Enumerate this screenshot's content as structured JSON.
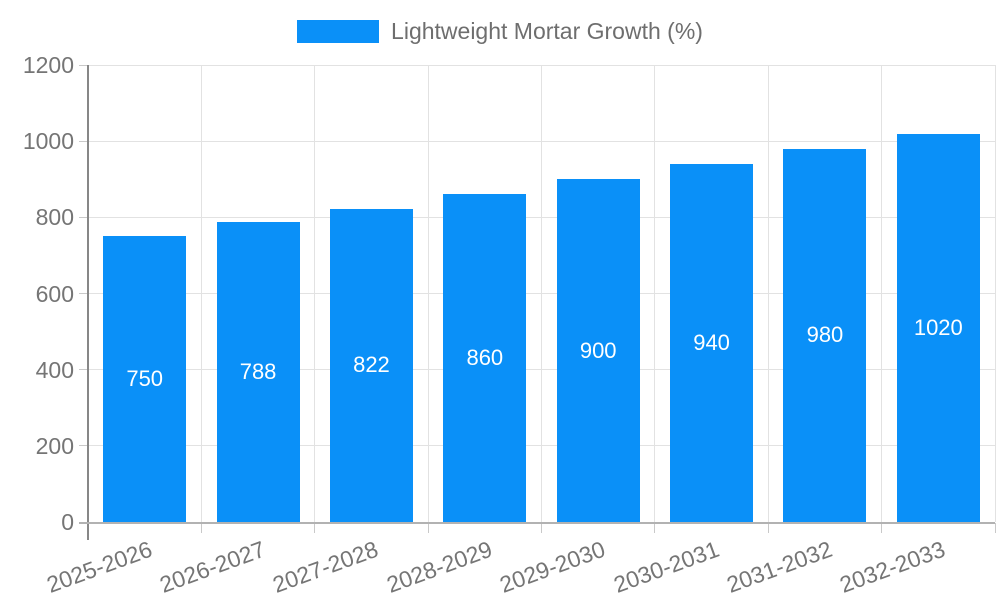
{
  "legend": {
    "label": "Lightweight Mortar Growth (%)"
  },
  "chart_data": {
    "type": "bar",
    "title": "",
    "xlabel": "",
    "ylabel": "",
    "categories": [
      "2025-2026",
      "2026-2027",
      "2027-2028",
      "2028-2029",
      "2029-2030",
      "2030-2031",
      "2031-2032",
      "2032-2033"
    ],
    "series": [
      {
        "name": "Lightweight Mortar Growth (%)",
        "values": [
          750,
          788,
          822,
          860,
          900,
          940,
          980,
          1020
        ]
      }
    ],
    "value_labels_shown": true,
    "ylim": [
      0,
      1200
    ],
    "yticks": [
      0,
      200,
      400,
      600,
      800,
      1000,
      1200
    ],
    "grid": "horizontal-and-vertical",
    "legend_position": "top-center",
    "colors": {
      "bar": "#0a90f8",
      "value_label": "#ffffff",
      "axis_text": "#757575",
      "legend_text": "#6e6e6e",
      "gridline": "#e2e2e2",
      "y_axis_line": "#878787",
      "x_axis_line": "#b2b2b2",
      "tick": "#c9c9c9",
      "background": "#ffffff"
    }
  }
}
